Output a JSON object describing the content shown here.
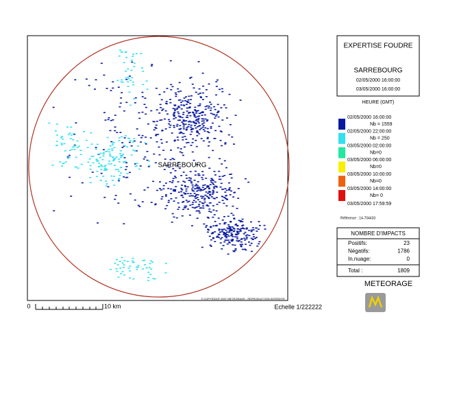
{
  "map": {
    "place_label": "SARREBOURG",
    "scale_start": "0",
    "scale_end": "10 km",
    "scale": "Echelle 1/222222",
    "copyright": "© COPYRIGHT 2007 METEORAGE - REPRODUCTION INTERDITE"
  },
  "panel": {
    "title": "EXPERTISE FOUDRE",
    "location": "SARREBOURG",
    "start": "02/05/2000 16:00:00",
    "end": "03/05/2000 16:00:00",
    "legend_title": "HEURE (GMT)",
    "legend": [
      {
        "time": "02/05/2000 16:00:00",
        "count": "Nb = 1559",
        "color": "#0a1aa0"
      },
      {
        "time": "02/05/2000 22:00:00",
        "count": "Nb = 250",
        "color": "#33e0f0"
      },
      {
        "time": "03/05/2000 02:00:00",
        "count": "Nb=0",
        "color": "#22e8a0"
      },
      {
        "time": "03/05/2000 06:00:00",
        "count": "Nb=0",
        "color": "#f8f000"
      },
      {
        "time": "03/05/2000 10:00:00",
        "count": "Nb=0",
        "color": "#f06010"
      },
      {
        "time": "03/05/2000 14:00:00",
        "count": "Nb= 0",
        "color": "#e01010"
      }
    ],
    "legend_end": "03/05/2000 17:59:59",
    "reference": "Référence : 14-704433",
    "impacts": {
      "title": "NOMBRE D'IMPACTS",
      "rows": [
        {
          "label": "Positifs:",
          "value": 23
        },
        {
          "label": "Négatifs:",
          "value": 1786
        },
        {
          "label": "In.nuage:",
          "value": 0
        }
      ],
      "total_label": "Total :",
      "total": 1809
    },
    "brand": "METEORAGE"
  }
}
